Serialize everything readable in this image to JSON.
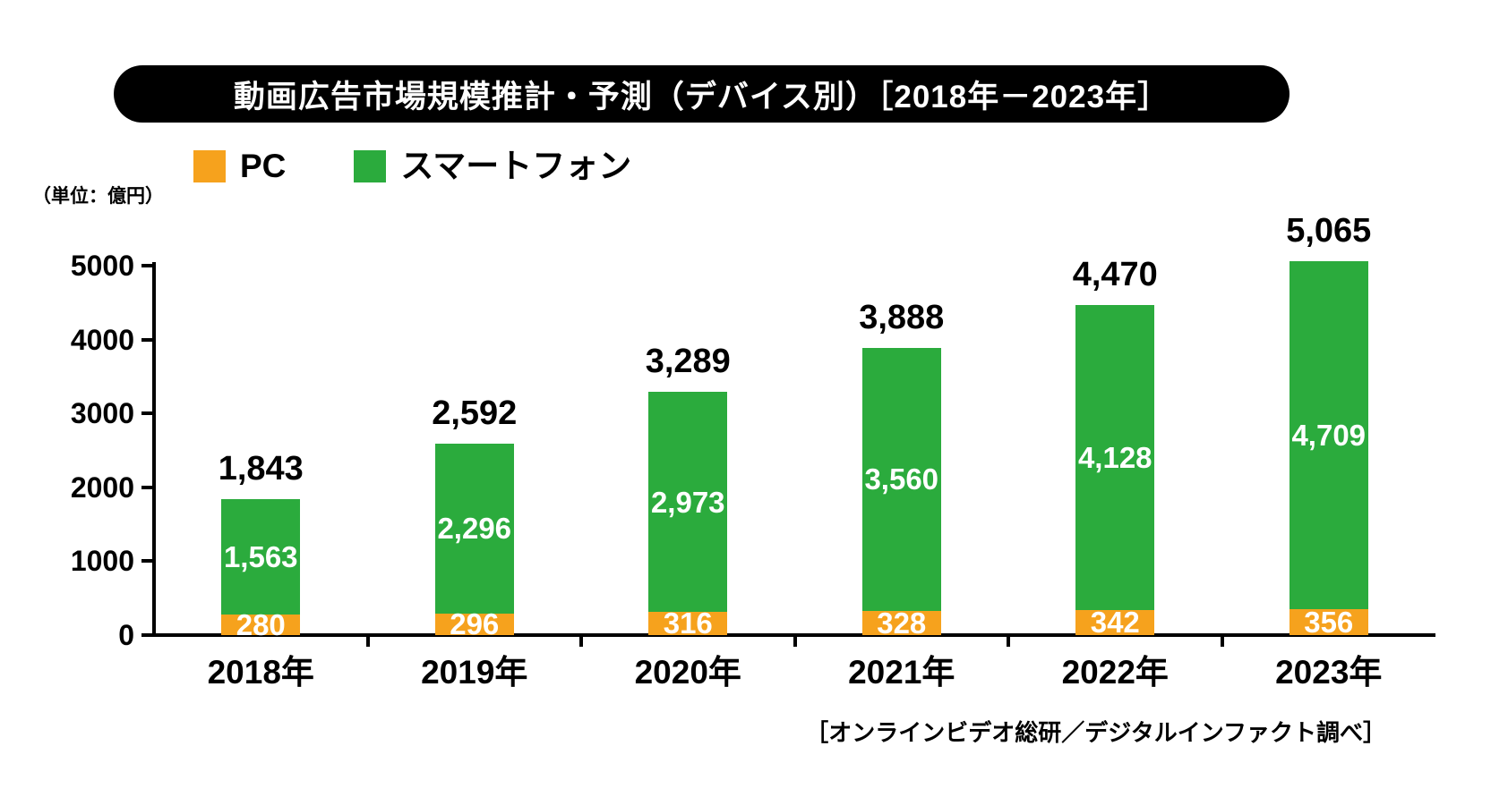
{
  "title": "動画広告市場規模推計・予測（デバイス別）［2018年－2023年］",
  "unit_label": "（単位：億円）",
  "source_note": "［オンラインビデオ総研／デジタルインファクト調べ］",
  "colors": {
    "pc": "#F6A21D",
    "smartphone": "#2BAB3D",
    "title_bg": "#000000",
    "title_text": "#FFFFFF",
    "axis": "#000000",
    "segment_label_text": "#FFFFFF"
  },
  "legend": {
    "items": [
      {
        "label": "PC",
        "color": "#F6A21D"
      },
      {
        "label": "スマートフォン",
        "color": "#2BAB3D"
      }
    ]
  },
  "chart_data": {
    "type": "bar",
    "stacked": true,
    "title": "動画広告市場規模推計・予測（デバイス別）［2018年－2023年］",
    "xlabel": "",
    "ylabel": "（単位：億円）",
    "legend_position": "top-left",
    "grid": false,
    "categories": [
      "2018年",
      "2019年",
      "2020年",
      "2021年",
      "2022年",
      "2023年"
    ],
    "series": [
      {
        "name": "PC",
        "color": "#F6A21D",
        "values": [
          280,
          296,
          316,
          328,
          342,
          356
        ],
        "labels": [
          "280",
          "296",
          "316",
          "328",
          "342",
          "356"
        ]
      },
      {
        "name": "スマートフォン",
        "color": "#2BAB3D",
        "values": [
          1563,
          2296,
          2973,
          3560,
          4128,
          4709
        ],
        "labels": [
          "1,563",
          "2,296",
          "2,973",
          "3,560",
          "4,128",
          "4,709"
        ]
      }
    ],
    "totals": [
      1843,
      2592,
      3289,
      3888,
      4470,
      5065
    ],
    "total_labels": [
      "1,843",
      "2,592",
      "3,289",
      "3,888",
      "4,470",
      "5,065"
    ],
    "y_axis": {
      "min": 0,
      "max": 5000,
      "tick_step": 1000,
      "ticks": [
        0,
        1000,
        2000,
        3000,
        4000,
        5000
      ],
      "tick_labels": [
        "0",
        "1000",
        "2000",
        "3000",
        "4000",
        "5000"
      ]
    }
  }
}
